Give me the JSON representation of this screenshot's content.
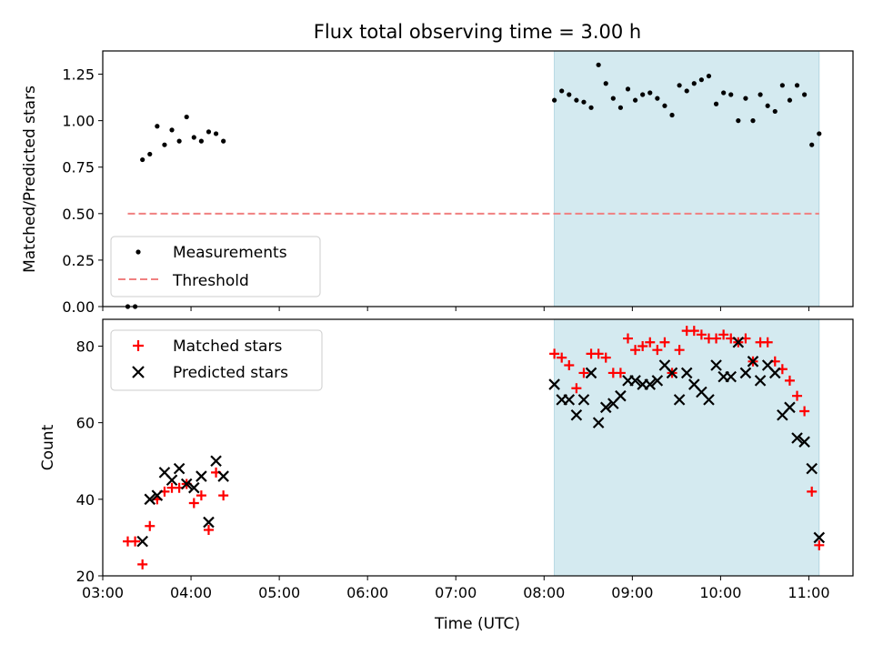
{
  "title": "Flux total observing time = 3.00 h",
  "chart_data": [
    {
      "type": "scatter",
      "ylabel": "Matched/Predicted stars",
      "xlim": [
        "03:00",
        "11:30"
      ],
      "ylim": [
        0,
        1.375
      ],
      "yticks": [
        "0.00",
        "0.25",
        "0.50",
        "0.75",
        "1.00",
        "1.25"
      ],
      "legend_position": "lower-left",
      "shaded_interval": [
        "08:07",
        "11:07"
      ],
      "shade_color": "#d4eaf0",
      "series": [
        {
          "name": "Measurements",
          "marker": "dot",
          "color": "#000000",
          "x": [
            "03:17",
            "03:22",
            "03:27",
            "03:32",
            "03:37",
            "03:42",
            "03:47",
            "03:52",
            "03:57",
            "04:02",
            "04:07",
            "04:12",
            "04:17",
            "04:22",
            "08:07",
            "08:12",
            "08:17",
            "08:22",
            "08:27",
            "08:32",
            "08:37",
            "08:42",
            "08:47",
            "08:52",
            "08:57",
            "09:02",
            "09:07",
            "09:12",
            "09:17",
            "09:22",
            "09:27",
            "09:32",
            "09:37",
            "09:42",
            "09:47",
            "09:52",
            "09:57",
            "10:02",
            "10:07",
            "10:12",
            "10:17",
            "10:22",
            "10:27",
            "10:32",
            "10:37",
            "10:42",
            "10:47",
            "10:52",
            "10:57",
            "11:02",
            "11:07"
          ],
          "y": [
            0.0,
            0.0,
            0.79,
            0.82,
            0.97,
            0.87,
            0.95,
            0.89,
            1.02,
            0.91,
            0.89,
            0.94,
            0.93,
            0.89,
            1.11,
            1.16,
            1.14,
            1.11,
            1.1,
            1.07,
            1.3,
            1.2,
            1.12,
            1.07,
            1.17,
            1.11,
            1.14,
            1.15,
            1.12,
            1.08,
            1.03,
            1.19,
            1.16,
            1.2,
            1.22,
            1.24,
            1.09,
            1.15,
            1.14,
            1.0,
            1.12,
            1.0,
            1.14,
            1.08,
            1.05,
            1.19,
            1.11,
            1.19,
            1.14,
            0.87,
            0.93
          ]
        },
        {
          "name": "Threshold",
          "marker": "dashed-line",
          "color": "#f08080",
          "x": [
            "03:17",
            "11:07"
          ],
          "y": [
            0.5,
            0.5
          ]
        }
      ]
    },
    {
      "type": "scatter",
      "xlabel": "Time (UTC)",
      "ylabel": "Count",
      "xlim": [
        "03:00",
        "11:30"
      ],
      "ylim": [
        20,
        87
      ],
      "yticks": [
        "20",
        "40",
        "60",
        "80"
      ],
      "xticks": [
        "03:00",
        "04:00",
        "05:00",
        "06:00",
        "07:00",
        "08:00",
        "09:00",
        "10:00",
        "11:00"
      ],
      "legend_position": "upper-left",
      "shaded_interval": [
        "08:07",
        "11:07"
      ],
      "shade_color": "#d4eaf0",
      "series": [
        {
          "name": "Matched stars",
          "marker": "plus",
          "color": "#ff0000",
          "x": [
            "03:17",
            "03:22",
            "03:27",
            "03:32",
            "03:37",
            "03:42",
            "03:47",
            "03:52",
            "03:57",
            "04:02",
            "04:07",
            "04:12",
            "04:17",
            "04:22",
            "08:07",
            "08:12",
            "08:17",
            "08:22",
            "08:27",
            "08:32",
            "08:37",
            "08:42",
            "08:47",
            "08:52",
            "08:57",
            "09:02",
            "09:07",
            "09:12",
            "09:17",
            "09:22",
            "09:27",
            "09:32",
            "09:37",
            "09:42",
            "09:47",
            "09:52",
            "09:57",
            "10:02",
            "10:07",
            "10:12",
            "10:17",
            "10:22",
            "10:27",
            "10:32",
            "10:37",
            "10:42",
            "10:47",
            "10:52",
            "10:57",
            "11:02",
            "11:07"
          ],
          "y": [
            29,
            29,
            23,
            33,
            40,
            42,
            43,
            43,
            44,
            39,
            41,
            32,
            47,
            41,
            78,
            77,
            75,
            69,
            73,
            78,
            78,
            77,
            73,
            73,
            82,
            79,
            80,
            81,
            79,
            81,
            73,
            79,
            84,
            84,
            83,
            82,
            82,
            83,
            82,
            81,
            82,
            76,
            81,
            81,
            76,
            74,
            71,
            67,
            63,
            42,
            28
          ]
        },
        {
          "name": "Predicted stars",
          "marker": "x",
          "color": "#000000",
          "x": [
            "03:27",
            "03:32",
            "03:37",
            "03:42",
            "03:47",
            "03:52",
            "03:57",
            "04:02",
            "04:07",
            "04:12",
            "04:17",
            "04:22",
            "08:07",
            "08:12",
            "08:17",
            "08:22",
            "08:27",
            "08:32",
            "08:37",
            "08:42",
            "08:47",
            "08:52",
            "08:57",
            "09:02",
            "09:07",
            "09:12",
            "09:17",
            "09:22",
            "09:27",
            "09:32",
            "09:37",
            "09:42",
            "09:47",
            "09:52",
            "09:57",
            "10:02",
            "10:07",
            "10:12",
            "10:17",
            "10:22",
            "10:27",
            "10:32",
            "10:37",
            "10:42",
            "10:47",
            "10:52",
            "10:57",
            "11:02",
            "11:07"
          ],
          "y": [
            29,
            40,
            41,
            47,
            45,
            48,
            44,
            43,
            46,
            34,
            50,
            46,
            70,
            66,
            66,
            62,
            66,
            73,
            60,
            64,
            65,
            67,
            71,
            71,
            70,
            70,
            71,
            75,
            73,
            66,
            73,
            70,
            68,
            66,
            75,
            72,
            72,
            81,
            73,
            76,
            71,
            75,
            73,
            62,
            64,
            56,
            55,
            48,
            30
          ]
        }
      ]
    }
  ]
}
